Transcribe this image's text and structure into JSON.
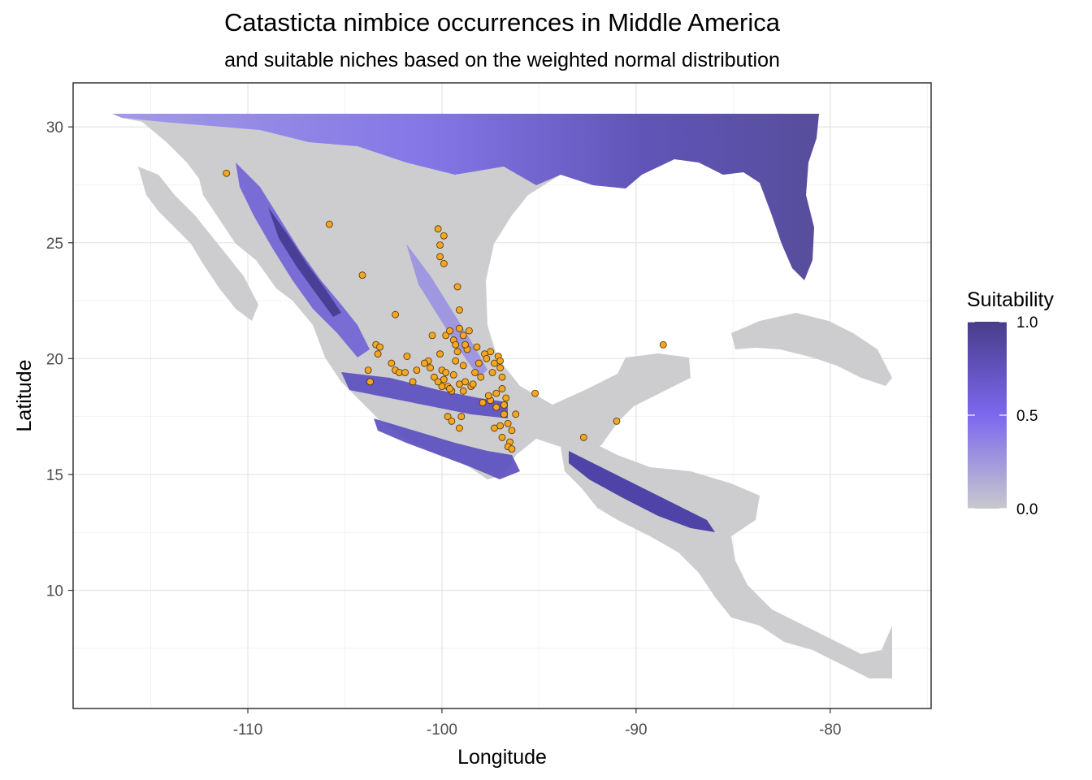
{
  "chart_data": {
    "type": "map",
    "title": "Catasticta nimbice occurrences in Middle America",
    "subtitle": "and suitable niches based on the weighted normal distribution",
    "xlabel": "Longitude",
    "ylabel": "Latitude",
    "xlim": [
      -119,
      -74.8
    ],
    "ylim": [
      4.9,
      31.9
    ],
    "x_ticks": [
      -110,
      -100,
      -90,
      -80
    ],
    "y_ticks": [
      10,
      15,
      20,
      25,
      30
    ],
    "grid": true,
    "legend": {
      "title": "Suitability",
      "position": "right",
      "ticks": [
        0.0,
        0.5,
        1.0
      ],
      "tick_labels": [
        "0.0",
        "0.5",
        "1.0"
      ],
      "colors": {
        "low": "#c8c8cc",
        "mid": "#7b68ee",
        "high": "#483d8b"
      }
    },
    "land_color": "#cdcdcf",
    "point_fill": "#f5a623",
    "point_stroke": "#4a3000",
    "points": [
      [
        -111.1,
        28.0
      ],
      [
        -105.8,
        25.8
      ],
      [
        -104.1,
        23.6
      ],
      [
        -102.4,
        21.9
      ],
      [
        -100.2,
        25.6
      ],
      [
        -99.9,
        25.3
      ],
      [
        -100.1,
        24.9
      ],
      [
        -100.1,
        24.4
      ],
      [
        -99.9,
        24.1
      ],
      [
        -99.2,
        23.1
      ],
      [
        -99.1,
        22.1
      ],
      [
        -88.6,
        20.6
      ],
      [
        -91.0,
        17.3
      ],
      [
        -92.7,
        16.6
      ],
      [
        -95.2,
        18.5
      ],
      [
        -103.4,
        20.6
      ],
      [
        -103.2,
        20.5
      ],
      [
        -103.3,
        20.2
      ],
      [
        -103.8,
        19.5
      ],
      [
        -103.7,
        19.0
      ],
      [
        -102.6,
        19.8
      ],
      [
        -102.4,
        19.5
      ],
      [
        -102.2,
        19.4
      ],
      [
        -101.9,
        19.4
      ],
      [
        -101.8,
        20.1
      ],
      [
        -101.3,
        19.5
      ],
      [
        -100.7,
        19.9
      ],
      [
        -100.6,
        19.6
      ],
      [
        -100.4,
        19.2
      ],
      [
        -100.1,
        20.2
      ],
      [
        -100.0,
        19.5
      ],
      [
        -99.9,
        19.1
      ],
      [
        -99.7,
        18.8
      ],
      [
        -99.5,
        18.6
      ],
      [
        -99.4,
        19.3
      ],
      [
        -99.3,
        19.9
      ],
      [
        -99.2,
        20.3
      ],
      [
        -99.1,
        18.9
      ],
      [
        -98.9,
        19.7
      ],
      [
        -98.8,
        19.0
      ],
      [
        -98.7,
        20.4
      ],
      [
        -98.5,
        18.8
      ],
      [
        -98.3,
        19.4
      ],
      [
        -98.0,
        19.2
      ],
      [
        -97.8,
        20.2
      ],
      [
        -97.5,
        20.3
      ],
      [
        -97.3,
        19.8
      ],
      [
        -97.1,
        20.1
      ],
      [
        -97.0,
        19.6
      ],
      [
        -96.9,
        19.2
      ],
      [
        -96.9,
        18.7
      ],
      [
        -97.2,
        18.5
      ],
      [
        -97.5,
        18.2
      ],
      [
        -97.6,
        18.4
      ],
      [
        -97.2,
        17.9
      ],
      [
        -96.8,
        17.6
      ],
      [
        -96.6,
        17.2
      ],
      [
        -96.4,
        16.9
      ],
      [
        -96.5,
        16.4
      ],
      [
        -96.6,
        16.2
      ],
      [
        -96.4,
        16.1
      ],
      [
        -96.2,
        17.6
      ],
      [
        -96.7,
        18.3
      ],
      [
        -97.0,
        17.1
      ],
      [
        -99.8,
        21.0
      ],
      [
        -99.6,
        21.2
      ],
      [
        -99.4,
        20.8
      ],
      [
        -99.1,
        21.3
      ],
      [
        -98.9,
        21.0
      ],
      [
        -98.8,
        20.6
      ],
      [
        -99.7,
        17.5
      ],
      [
        -99.5,
        17.3
      ],
      [
        -99.1,
        17.0
      ],
      [
        -100.5,
        21.0
      ],
      [
        -100.0,
        18.8
      ],
      [
        -99.6,
        18.7
      ],
      [
        -98.4,
        18.9
      ],
      [
        -97.7,
        20.0
      ],
      [
        -97.4,
        19.4
      ],
      [
        -96.8,
        18.0
      ],
      [
        -97.9,
        18.1
      ],
      [
        -98.1,
        19.8
      ],
      [
        -99.3,
        20.6
      ],
      [
        -98.6,
        21.2
      ],
      [
        -99.8,
        19.4
      ],
      [
        -100.2,
        19.0
      ],
      [
        -98.2,
        20.5
      ],
      [
        -96.9,
        16.6
      ],
      [
        -97.3,
        17.0
      ],
      [
        -99.0,
        17.5
      ],
      [
        -101.5,
        19.0
      ],
      [
        -100.9,
        19.8
      ],
      [
        -98.9,
        18.6
      ],
      [
        -97.0,
        19.9
      ]
    ]
  }
}
